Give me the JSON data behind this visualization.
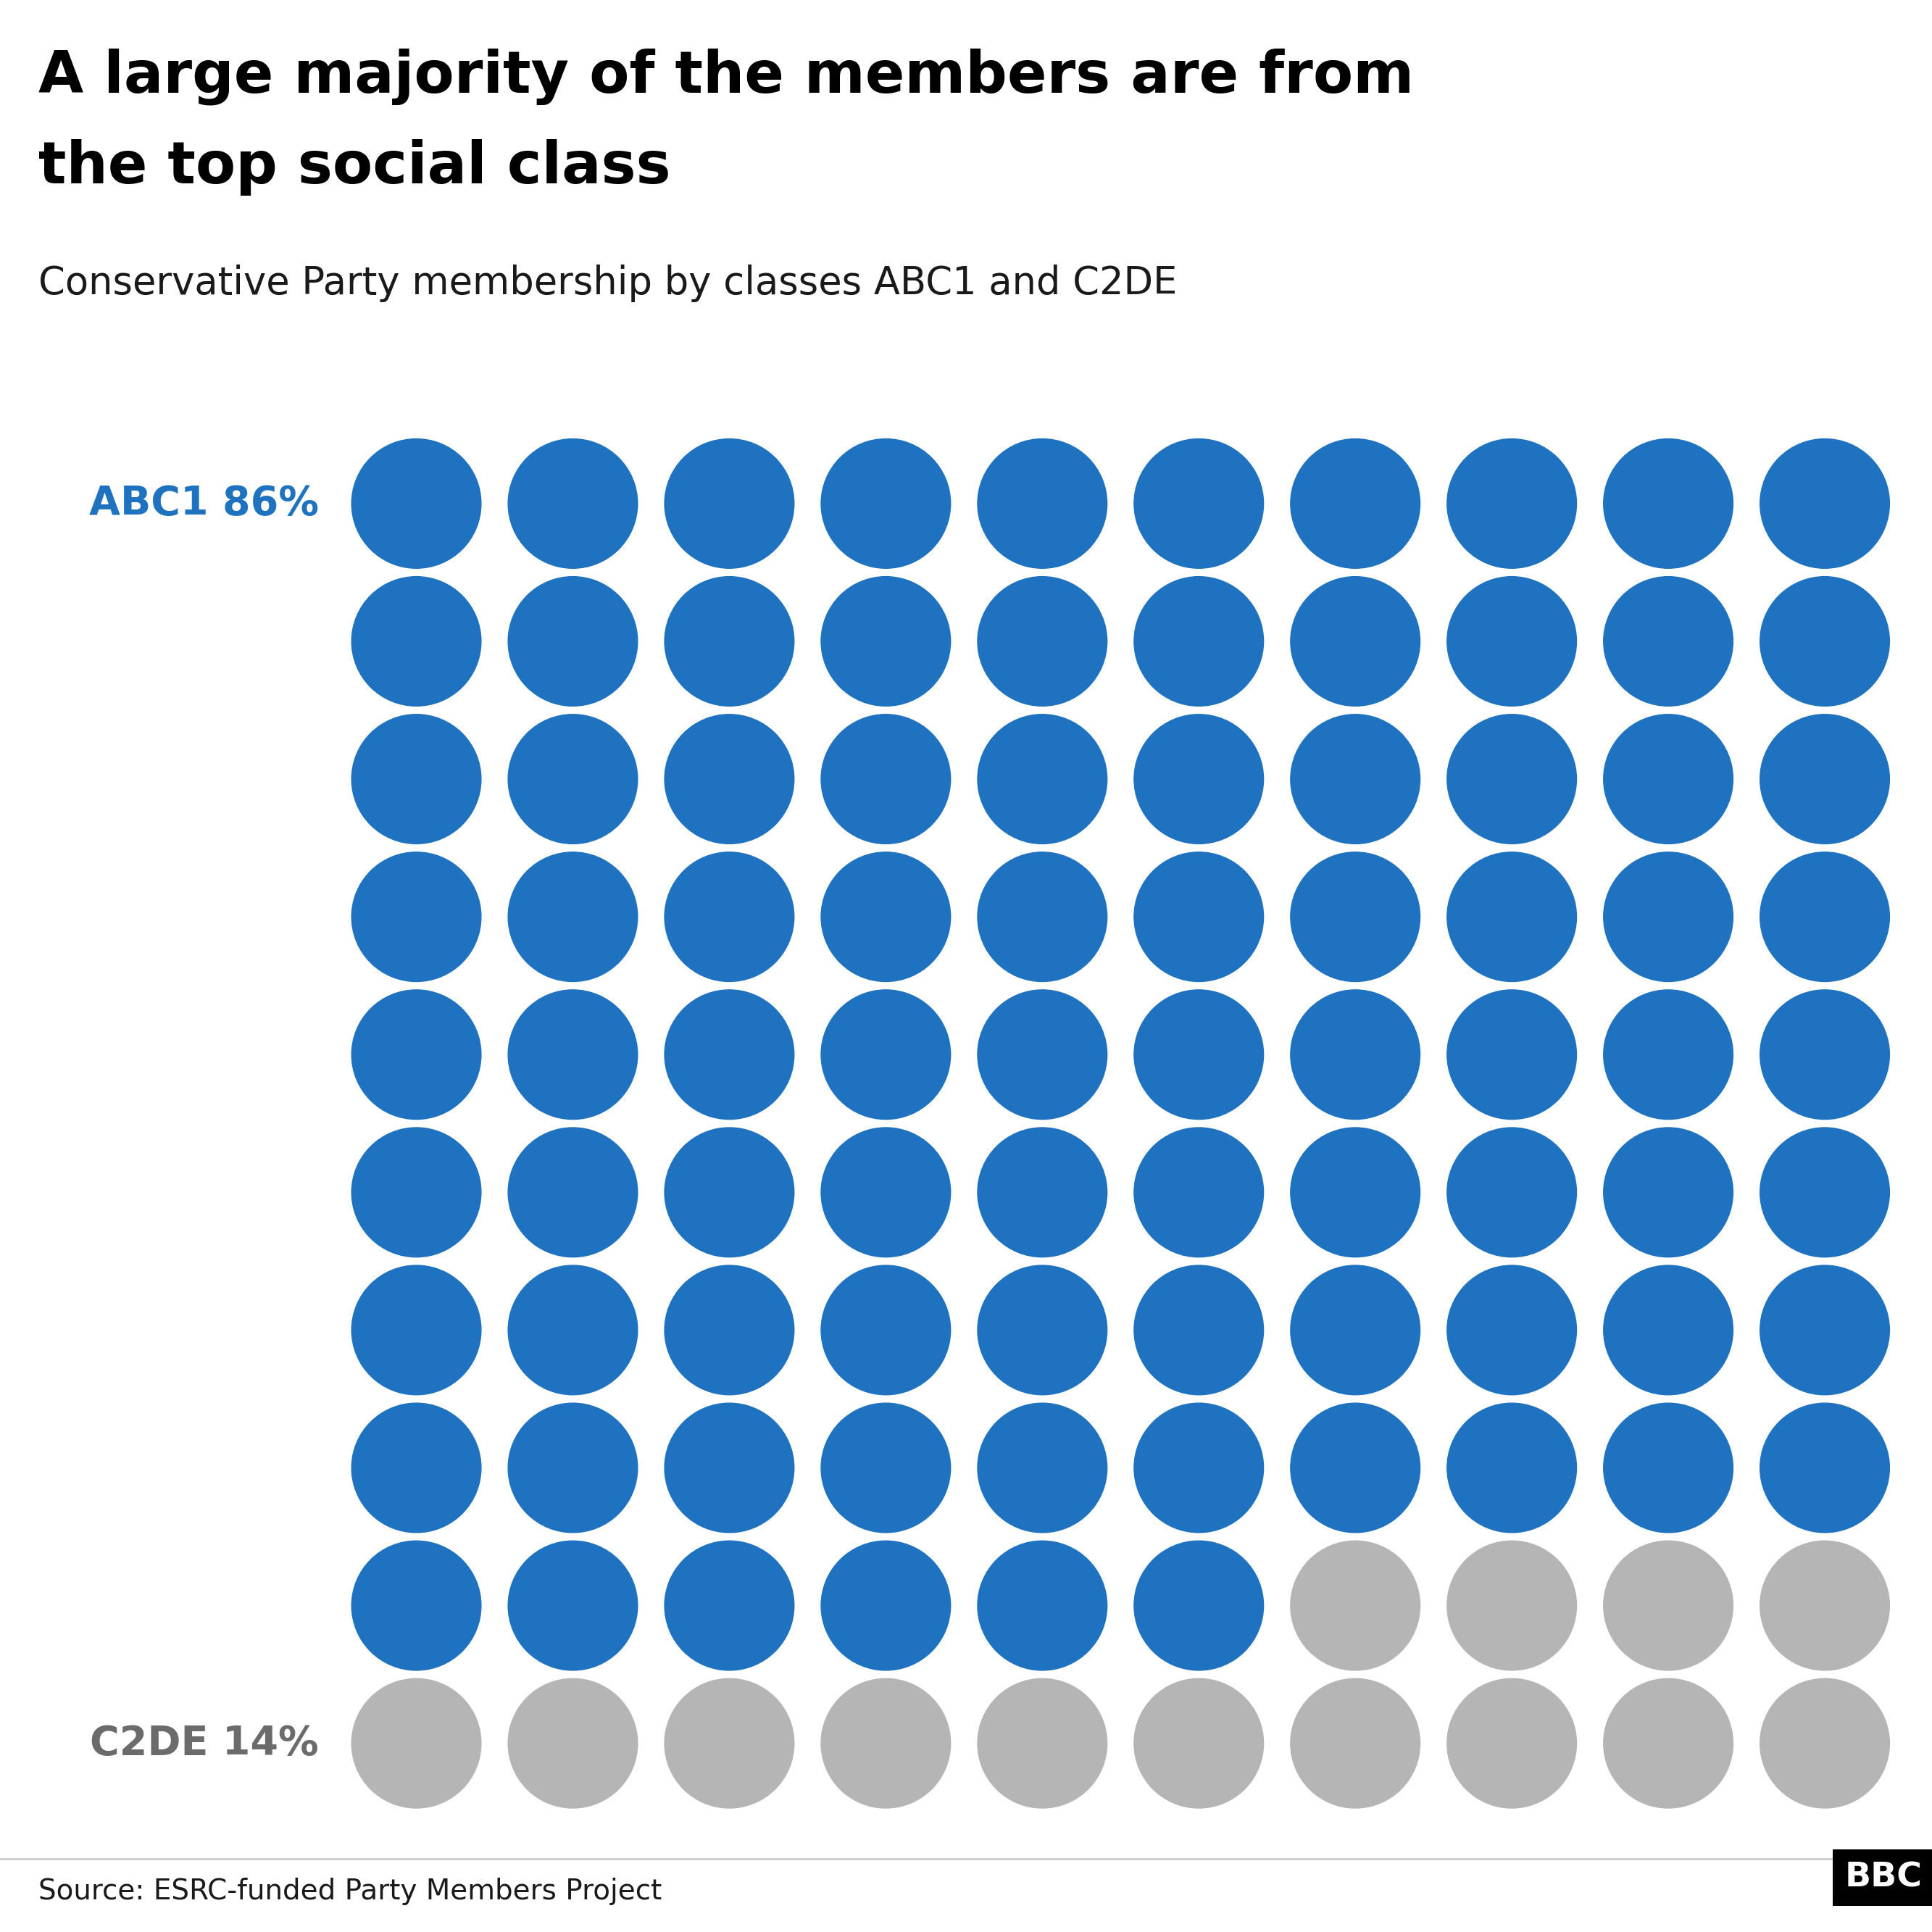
{
  "title_line1": "A large majority of the members are from",
  "title_line2": "the top social class",
  "subtitle": "Conservative Party membership by classes ABC1 and C2DE",
  "abc1_label": "ABC1 86%",
  "c2de_label": "C2DE 14%",
  "source": "Source: ESRC-funded Party Members Project",
  "abc1_color": "#1f72bf",
  "c2de_color": "#b5b5b5",
  "title_color": "#000000",
  "subtitle_color": "#1a1a1a",
  "abc1_label_color": "#1f72bf",
  "c2de_label_color": "#6b6b6b",
  "source_color": "#1a1a1a",
  "background_color": "#ffffff",
  "n_cols": 10,
  "n_rows": 10,
  "n_abc1": 86,
  "n_c2de": 14,
  "title_fontsize": 58,
  "subtitle_fontsize": 38,
  "label_fontsize": 40,
  "source_fontsize": 28
}
